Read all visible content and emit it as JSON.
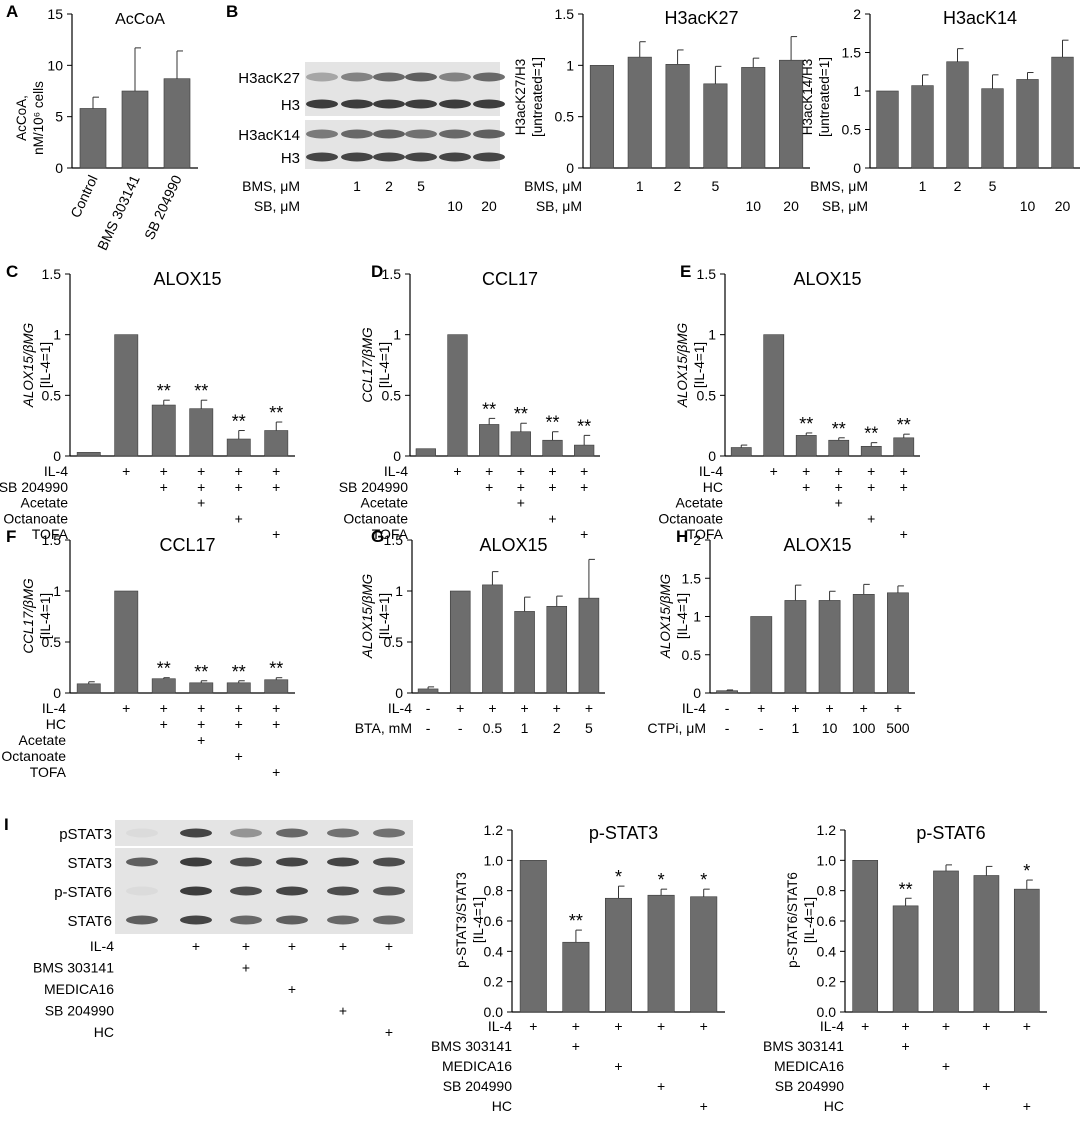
{
  "colors": {
    "bar": "#6d6d6d",
    "axis": "#000000",
    "blot_bg": "#e4e4e4",
    "band": "#333333"
  },
  "panel_letters": [
    "A",
    "B",
    "C",
    "D",
    "E",
    "F",
    "G",
    "H",
    "I"
  ],
  "chart_data": [
    {
      "id": "A",
      "type": "bar",
      "title": "AcCoA",
      "ylabel_lines": [
        "AcCoA,",
        "nM/10⁶ cells"
      ],
      "ylim": [
        0,
        15
      ],
      "yticks": [
        "0",
        "5",
        "10",
        "15"
      ],
      "ytick_values": [
        0,
        5,
        10,
        15
      ],
      "values": [
        5.8,
        7.5,
        8.7
      ],
      "errors": [
        1.1,
        4.2,
        2.7
      ],
      "stars": [
        "",
        "",
        ""
      ],
      "xticklabels": [
        "Control",
        "BMS 303141",
        "SB 204990"
      ]
    },
    {
      "id": "B2",
      "type": "bar",
      "title": "H3acK27",
      "ylabel_lines": [
        "H3acK27/H3",
        "[untreated=1]"
      ],
      "ylim": [
        0,
        1.5
      ],
      "yticks": [
        "0",
        "0.5",
        "1",
        "1.5"
      ],
      "ytick_values": [
        0,
        0.5,
        1,
        1.5
      ],
      "values": [
        1.0,
        1.08,
        1.01,
        0.82,
        0.98,
        1.05
      ],
      "errors": [
        0,
        0.15,
        0.14,
        0.17,
        0.09,
        0.23
      ],
      "stars": [
        "",
        "",
        "",
        "",
        "",
        ""
      ],
      "conditions": [
        {
          "label": "BMS, μM",
          "marks": [
            "",
            "1",
            "2",
            "5",
            "",
            ""
          ]
        },
        {
          "label": "SB, μM",
          "marks": [
            "",
            "",
            "",
            "",
            "10",
            "20"
          ]
        }
      ]
    },
    {
      "id": "B3",
      "type": "bar",
      "title": "H3acK14",
      "ylabel_lines": [
        "H3acK14/H3",
        "[untreated=1]"
      ],
      "ylim": [
        0,
        2
      ],
      "yticks": [
        "0",
        "0.5",
        "1",
        "1.5",
        "2"
      ],
      "ytick_values": [
        0,
        0.5,
        1,
        1.5,
        2
      ],
      "values": [
        1.0,
        1.07,
        1.38,
        1.03,
        1.15,
        1.44
      ],
      "errors": [
        0,
        0.14,
        0.17,
        0.18,
        0.09,
        0.22
      ],
      "stars": [
        "",
        "",
        "",
        "",
        "",
        ""
      ],
      "conditions": [
        {
          "label": "BMS, μM",
          "marks": [
            "",
            "1",
            "2",
            "5",
            "",
            ""
          ]
        },
        {
          "label": "SB, μM",
          "marks": [
            "",
            "",
            "",
            "",
            "10",
            "20"
          ]
        }
      ]
    },
    {
      "id": "C",
      "type": "bar",
      "title": "ALOX15",
      "ylabel_lines": [
        "ALOX15/βMG",
        "[IL-4=1]"
      ],
      "ylim": [
        0,
        1.5
      ],
      "yticks": [
        "0",
        "0.5",
        "1",
        "1.5"
      ],
      "ytick_values": [
        0,
        0.5,
        1,
        1.5
      ],
      "values": [
        0.03,
        1.0,
        0.42,
        0.39,
        0.14,
        0.21
      ],
      "errors": [
        0,
        0,
        0.04,
        0.07,
        0.07,
        0.07
      ],
      "stars": [
        "",
        "",
        "**",
        "**",
        "**",
        "**"
      ],
      "conditions": [
        {
          "label": "IL-4",
          "marks": [
            "",
            "+",
            "+",
            "+",
            "+",
            "+"
          ]
        },
        {
          "label": "SB 204990",
          "marks": [
            "",
            "",
            "+",
            "+",
            "+",
            "+"
          ]
        },
        {
          "label": "Acetate",
          "marks": [
            "",
            "",
            "",
            "+",
            "",
            ""
          ]
        },
        {
          "label": "Octanoate",
          "marks": [
            "",
            "",
            "",
            "",
            "+",
            ""
          ]
        },
        {
          "label": "TOFA",
          "marks": [
            "",
            "",
            "",
            "",
            "",
            "+"
          ]
        }
      ]
    },
    {
      "id": "D",
      "type": "bar",
      "title": "CCL17",
      "ylabel_lines": [
        "CCL17/βMG",
        "[IL-4=1]"
      ],
      "ylim": [
        0,
        1.5
      ],
      "yticks": [
        "0",
        "0.5",
        "1",
        "1.5"
      ],
      "ytick_values": [
        0,
        0.5,
        1,
        1.5
      ],
      "values": [
        0.06,
        1.0,
        0.26,
        0.2,
        0.13,
        0.09
      ],
      "errors": [
        0,
        0,
        0.05,
        0.07,
        0.07,
        0.08
      ],
      "stars": [
        "",
        "",
        "**",
        "**",
        "**",
        "**"
      ],
      "conditions": [
        {
          "label": "IL-4",
          "marks": [
            "",
            "+",
            "+",
            "+",
            "+",
            "+"
          ]
        },
        {
          "label": "SB 204990",
          "marks": [
            "",
            "",
            "+",
            "+",
            "+",
            "+"
          ]
        },
        {
          "label": "Acetate",
          "marks": [
            "",
            "",
            "",
            "+",
            "",
            ""
          ]
        },
        {
          "label": "Octanoate",
          "marks": [
            "",
            "",
            "",
            "",
            "+",
            ""
          ]
        },
        {
          "label": "TOFA",
          "marks": [
            "",
            "",
            "",
            "",
            "",
            "+"
          ]
        }
      ]
    },
    {
      "id": "E",
      "type": "bar",
      "title": "ALOX15",
      "ylabel_lines": [
        "ALOX15/βMG",
        "[IL-4=1]"
      ],
      "ylim": [
        0,
        1.5
      ],
      "yticks": [
        "0",
        "0.5",
        "1",
        "1.5"
      ],
      "ytick_values": [
        0,
        0.5,
        1,
        1.5
      ],
      "values": [
        0.07,
        1.0,
        0.17,
        0.13,
        0.08,
        0.15
      ],
      "errors": [
        0.02,
        0,
        0.02,
        0.02,
        0.03,
        0.03
      ],
      "stars": [
        "",
        "",
        "**",
        "**",
        "**",
        "**"
      ],
      "conditions": [
        {
          "label": "IL-4",
          "marks": [
            "",
            "+",
            "+",
            "+",
            "+",
            "+"
          ]
        },
        {
          "label": "HC",
          "marks": [
            "",
            "",
            "+",
            "+",
            "+",
            "+"
          ]
        },
        {
          "label": "Acetate",
          "marks": [
            "",
            "",
            "",
            "+",
            "",
            ""
          ]
        },
        {
          "label": "Octanoate",
          "marks": [
            "",
            "",
            "",
            "",
            "+",
            ""
          ]
        },
        {
          "label": "TOFA",
          "marks": [
            "",
            "",
            "",
            "",
            "",
            "+"
          ]
        }
      ]
    },
    {
      "id": "F",
      "type": "bar",
      "title": "CCL17",
      "ylabel_lines": [
        "CCL17/βMG",
        "[IL-4=1]"
      ],
      "ylim": [
        0,
        1.5
      ],
      "yticks": [
        "0",
        "0.5",
        "1",
        "1.5"
      ],
      "ytick_values": [
        0,
        0.5,
        1,
        1.5
      ],
      "values": [
        0.09,
        1.0,
        0.14,
        0.1,
        0.1,
        0.13
      ],
      "errors": [
        0.02,
        0,
        0.01,
        0.02,
        0.02,
        0.02
      ],
      "stars": [
        "",
        "",
        "**",
        "**",
        "**",
        "**"
      ],
      "conditions": [
        {
          "label": "IL-4",
          "marks": [
            "",
            "+",
            "+",
            "+",
            "+",
            "+"
          ]
        },
        {
          "label": "HC",
          "marks": [
            "",
            "",
            "+",
            "+",
            "+",
            "+"
          ]
        },
        {
          "label": "Acetate",
          "marks": [
            "",
            "",
            "",
            "+",
            "",
            ""
          ]
        },
        {
          "label": "Octanoate",
          "marks": [
            "",
            "",
            "",
            "",
            "+",
            ""
          ]
        },
        {
          "label": "TOFA",
          "marks": [
            "",
            "",
            "",
            "",
            "",
            "+"
          ]
        }
      ]
    },
    {
      "id": "G",
      "type": "bar",
      "title": "ALOX15",
      "ylabel_lines": [
        "ALOX15/βMG",
        "[IL-4=1]"
      ],
      "ylim": [
        0,
        1.5
      ],
      "yticks": [
        "0",
        "0.5",
        "1",
        "1.5"
      ],
      "ytick_values": [
        0,
        0.5,
        1,
        1.5
      ],
      "values": [
        0.04,
        1.0,
        1.06,
        0.8,
        0.85,
        0.93
      ],
      "errors": [
        0.02,
        0,
        0.13,
        0.14,
        0.1,
        0.38
      ],
      "stars": [
        "",
        "",
        "",
        "",
        "",
        ""
      ],
      "conditions": [
        {
          "label": "IL-4",
          "marks": [
            "-",
            "+",
            "+",
            "+",
            "+",
            "+"
          ]
        },
        {
          "label": "BTA, mM",
          "marks": [
            "-",
            "-",
            "0.5",
            "1",
            "2",
            "5"
          ]
        }
      ]
    },
    {
      "id": "H",
      "type": "bar",
      "title": "ALOX15",
      "ylabel_lines": [
        "ALOX15/βMG",
        "[IL-4=1]"
      ],
      "ylim": [
        0,
        2
      ],
      "yticks": [
        "0",
        "0.5",
        "1",
        "1.5",
        "2"
      ],
      "ytick_values": [
        0,
        0.5,
        1,
        1.5,
        2
      ],
      "values": [
        0.03,
        1.0,
        1.21,
        1.21,
        1.29,
        1.31
      ],
      "errors": [
        0.01,
        0,
        0.2,
        0.12,
        0.13,
        0.09
      ],
      "stars": [
        "",
        "",
        "",
        "",
        "",
        ""
      ],
      "conditions": [
        {
          "label": "IL-4",
          "marks": [
            "-",
            "+",
            "+",
            "+",
            "+",
            "+"
          ]
        },
        {
          "label": "CTPi, μM",
          "marks": [
            "-",
            "-",
            "1",
            "10",
            "100",
            "500"
          ]
        }
      ]
    },
    {
      "id": "I2",
      "type": "bar",
      "title": "p-STAT3",
      "ylabel_lines": [
        "p-STAT3/STAT3",
        "[IL-4=1]"
      ],
      "ylim": [
        0,
        1.2
      ],
      "yticks": [
        "0.0",
        "0.2",
        "0.4",
        "0.6",
        "0.8",
        "1.0",
        "1.2"
      ],
      "ytick_values": [
        0,
        0.2,
        0.4,
        0.6,
        0.8,
        1.0,
        1.2
      ],
      "values": [
        1.0,
        0.46,
        0.75,
        0.77,
        0.76
      ],
      "errors": [
        0,
        0.08,
        0.08,
        0.04,
        0.05
      ],
      "stars": [
        "",
        "**",
        "*",
        "*",
        "*"
      ],
      "conditions": [
        {
          "label": "IL-4",
          "marks": [
            "+",
            "+",
            "+",
            "+",
            "+"
          ]
        },
        {
          "label": "BMS 303141",
          "marks": [
            "",
            "+",
            "",
            "",
            ""
          ]
        },
        {
          "label": "MEDICA16",
          "marks": [
            "",
            "",
            "+",
            "",
            ""
          ]
        },
        {
          "label": "SB 204990",
          "marks": [
            "",
            "",
            "",
            "+",
            ""
          ]
        },
        {
          "label": "HC",
          "marks": [
            "",
            "",
            "",
            "",
            "+"
          ]
        }
      ]
    },
    {
      "id": "I3",
      "type": "bar",
      "title": "p-STAT6",
      "ylabel_lines": [
        "p-STAT6/STAT6",
        "[IL-4=1]"
      ],
      "ylim": [
        0,
        1.2
      ],
      "yticks": [
        "0.0",
        "0.2",
        "0.4",
        "0.6",
        "0.8",
        "1.0",
        "1.2"
      ],
      "ytick_values": [
        0,
        0.2,
        0.4,
        0.6,
        0.8,
        1.0,
        1.2
      ],
      "values": [
        1.0,
        0.7,
        0.93,
        0.9,
        0.81
      ],
      "errors": [
        0,
        0.05,
        0.04,
        0.06,
        0.06
      ],
      "stars": [
        "",
        "**",
        "",
        "",
        "*"
      ],
      "conditions": [
        {
          "label": "IL-4",
          "marks": [
            "+",
            "+",
            "+",
            "+",
            "+"
          ]
        },
        {
          "label": "BMS 303141",
          "marks": [
            "",
            "+",
            "",
            "",
            ""
          ]
        },
        {
          "label": "MEDICA16",
          "marks": [
            "",
            "",
            "+",
            "",
            ""
          ]
        },
        {
          "label": "SB 204990",
          "marks": [
            "",
            "",
            "",
            "+",
            ""
          ]
        },
        {
          "label": "HC",
          "marks": [
            "",
            "",
            "",
            "",
            "+"
          ]
        }
      ]
    }
  ],
  "blots": {
    "B": {
      "rows": [
        {
          "label": "H3acK27",
          "intensity": [
            0.35,
            0.55,
            0.7,
            0.75,
            0.55,
            0.7
          ]
        },
        {
          "label": "H3",
          "intensity": [
            0.95,
            0.95,
            0.95,
            0.95,
            0.95,
            0.95
          ]
        },
        {
          "label": "H3acK14",
          "intensity": [
            0.6,
            0.7,
            0.75,
            0.65,
            0.7,
            0.75
          ]
        },
        {
          "label": "H3",
          "intensity": [
            0.9,
            0.9,
            0.9,
            0.9,
            0.9,
            0.9
          ]
        }
      ],
      "conditions": [
        {
          "label": "BMS, μM",
          "marks": [
            "",
            "1",
            "2",
            "5",
            "",
            ""
          ]
        },
        {
          "label": "SB, μM",
          "marks": [
            "",
            "",
            "",
            "",
            "10",
            "20"
          ]
        }
      ]
    },
    "I": {
      "rows": [
        {
          "label": "pSTAT3",
          "intensity": [
            0.05,
            0.9,
            0.45,
            0.7,
            0.65,
            0.65
          ]
        },
        {
          "label": "STAT3",
          "intensity": [
            0.75,
            0.95,
            0.85,
            0.9,
            0.9,
            0.85
          ]
        },
        {
          "label": "p-STAT6",
          "intensity": [
            0.05,
            0.95,
            0.85,
            0.9,
            0.85,
            0.8
          ]
        },
        {
          "label": "STAT6",
          "intensity": [
            0.75,
            0.9,
            0.7,
            0.75,
            0.7,
            0.7
          ]
        }
      ],
      "conditions": [
        {
          "label": "IL-4",
          "marks": [
            "",
            "+",
            "+",
            "+",
            "+",
            "+"
          ]
        },
        {
          "label": "BMS 303141",
          "marks": [
            "",
            "",
            "+",
            "",
            "",
            ""
          ]
        },
        {
          "label": "MEDICA16",
          "marks": [
            "",
            "",
            "",
            "+",
            "",
            ""
          ]
        },
        {
          "label": "SB 204990",
          "marks": [
            "",
            "",
            "",
            "",
            "+",
            ""
          ]
        },
        {
          "label": "HC",
          "marks": [
            "",
            "",
            "",
            "",
            "",
            "+"
          ]
        }
      ]
    }
  }
}
